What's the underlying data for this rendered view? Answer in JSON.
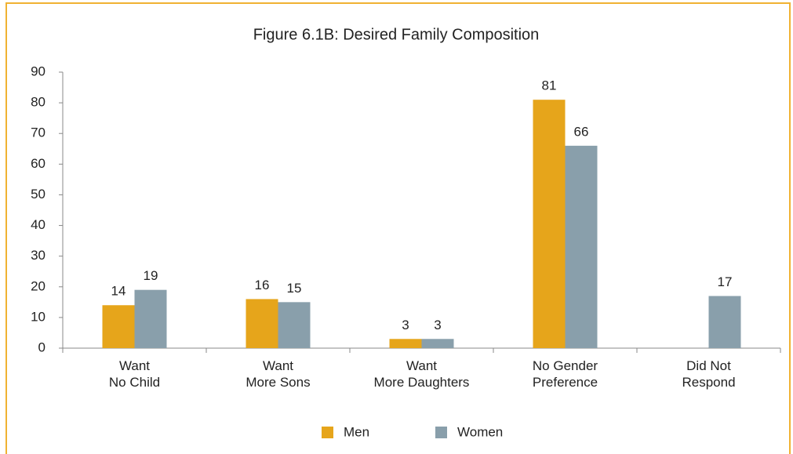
{
  "chart_data": {
    "type": "bar",
    "title": "Figure 6.1B: Desired Family Composition",
    "categories": [
      [
        "Want",
        "No Child"
      ],
      [
        "Want",
        "More Sons"
      ],
      [
        "Want",
        "More Daughters"
      ],
      [
        "No Gender",
        "Preference"
      ],
      [
        "Did Not",
        "Respond"
      ]
    ],
    "series": [
      {
        "name": "Men",
        "color": "#e6a51b",
        "values": [
          14,
          16,
          3,
          81,
          null
        ]
      },
      {
        "name": "Women",
        "color": "#899fab",
        "values": [
          19,
          15,
          3,
          66,
          17
        ]
      }
    ],
    "ylim": [
      0,
      90
    ],
    "yticks": [
      0,
      10,
      20,
      30,
      40,
      50,
      60,
      70,
      80,
      90
    ],
    "grid": false,
    "legend": "bottom"
  }
}
